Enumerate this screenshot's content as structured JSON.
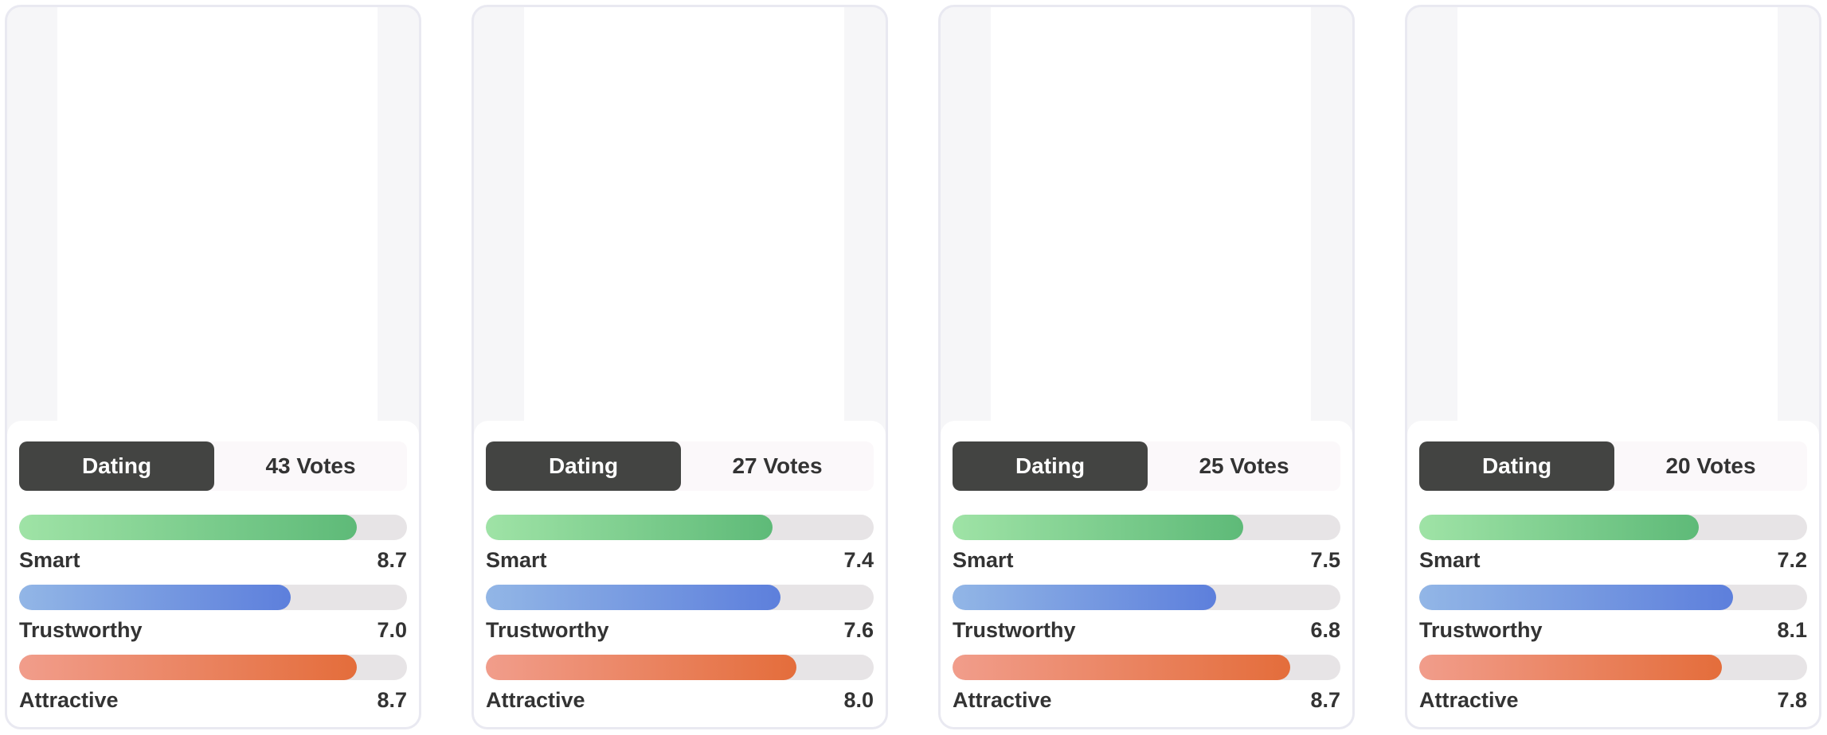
{
  "colors": {
    "tab_active_bg": "#434442",
    "smart_gradient": [
      "#9fe3a6",
      "#5eba78"
    ],
    "trust_gradient": [
      "#92b6e6",
      "#5d7fdc"
    ],
    "attractive_gradient": [
      "#f19d8b",
      "#e46d3b"
    ],
    "track": "#e7e4e6"
  },
  "cards": [
    {
      "tab_label": "Dating",
      "votes_label": "43 Votes",
      "metrics": [
        {
          "label": "Smart",
          "value": "8.7",
          "fill_fraction": 0.87
        },
        {
          "label": "Trustworthy",
          "value": "7.0",
          "fill_fraction": 0.7
        },
        {
          "label": "Attractive",
          "value": "8.7",
          "fill_fraction": 0.87
        }
      ]
    },
    {
      "tab_label": "Dating",
      "votes_label": "27 Votes",
      "metrics": [
        {
          "label": "Smart",
          "value": "7.4",
          "fill_fraction": 0.74
        },
        {
          "label": "Trustworthy",
          "value": "7.6",
          "fill_fraction": 0.76
        },
        {
          "label": "Attractive",
          "value": "8.0",
          "fill_fraction": 0.8
        }
      ]
    },
    {
      "tab_label": "Dating",
      "votes_label": "25 Votes",
      "metrics": [
        {
          "label": "Smart",
          "value": "7.5",
          "fill_fraction": 0.75
        },
        {
          "label": "Trustworthy",
          "value": "6.8",
          "fill_fraction": 0.68
        },
        {
          "label": "Attractive",
          "value": "8.7",
          "fill_fraction": 0.87
        }
      ]
    },
    {
      "tab_label": "Dating",
      "votes_label": "20 Votes",
      "metrics": [
        {
          "label": "Smart",
          "value": "7.2",
          "fill_fraction": 0.72
        },
        {
          "label": "Trustworthy",
          "value": "8.1",
          "fill_fraction": 0.81
        },
        {
          "label": "Attractive",
          "value": "7.8",
          "fill_fraction": 0.78
        }
      ]
    }
  ]
}
